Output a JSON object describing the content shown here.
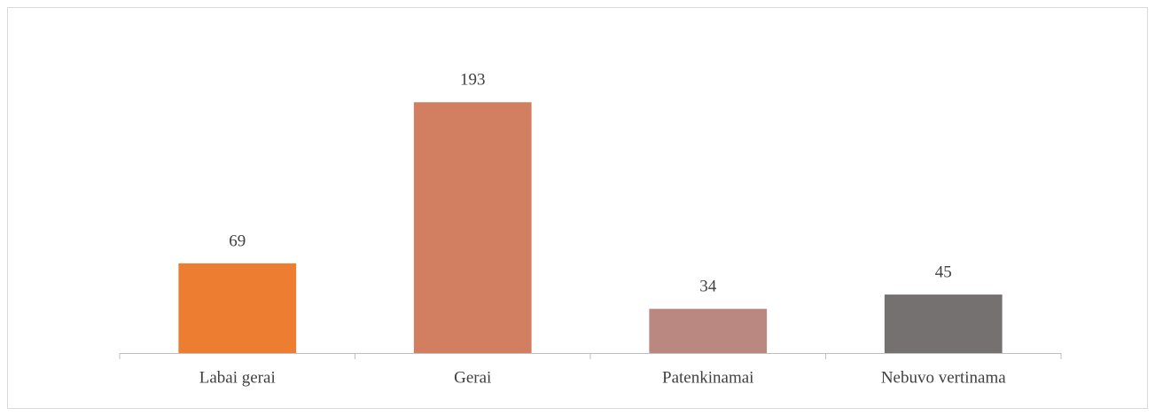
{
  "chart_data": {
    "type": "bar",
    "categories": [
      "Labai gerai",
      "Gerai",
      "Patenkinamai",
      "Nebuvo vertinama"
    ],
    "values": [
      69,
      193,
      34,
      45
    ],
    "colors": [
      "#ed7d31",
      "#d27f61",
      "#ba8880",
      "#767171"
    ],
    "ylim": [
      0,
      200
    ]
  }
}
